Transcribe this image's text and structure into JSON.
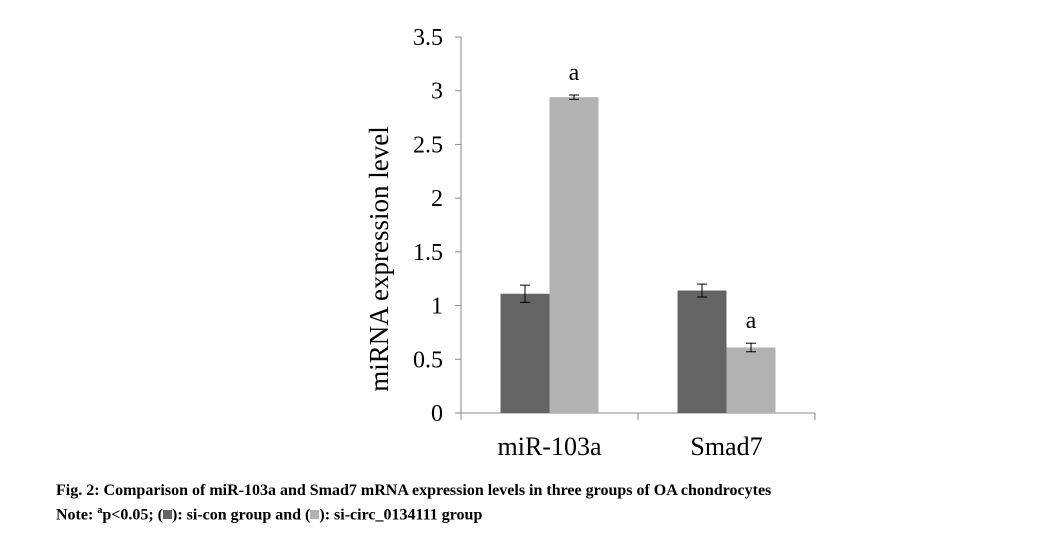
{
  "chart_data": {
    "type": "bar",
    "ylabel": "miRNA expression level",
    "ylim": [
      0,
      3.5
    ],
    "yticks": [
      "0",
      "0.5",
      "1",
      "1.5",
      "2",
      "2.5",
      "3",
      "3.5"
    ],
    "categories": [
      "miR-103a",
      "Smad7"
    ],
    "grid": false,
    "series": [
      {
        "name": "si-con group",
        "color": "#646464",
        "values": [
          1.11,
          1.14
        ],
        "errors": [
          0.08,
          0.06
        ],
        "labels": [
          "",
          ""
        ]
      },
      {
        "name": "si-circ_0134111 group",
        "color": "#b2b2b2",
        "values": [
          2.94,
          0.61
        ],
        "errors": [
          0.02,
          0.04
        ],
        "labels": [
          "a",
          "a"
        ]
      }
    ]
  },
  "caption": {
    "title": "Fig. 2: Comparison of miR-103a and Smad7 mRNA expression levels in three groups of OA chondrocytes",
    "note_prefix": "Note: ",
    "note_sup": "a",
    "note_p": "p<0.05; (",
    "note_mid": "): si-con group and (",
    "note_end": "): si-circ_0134111 group"
  }
}
